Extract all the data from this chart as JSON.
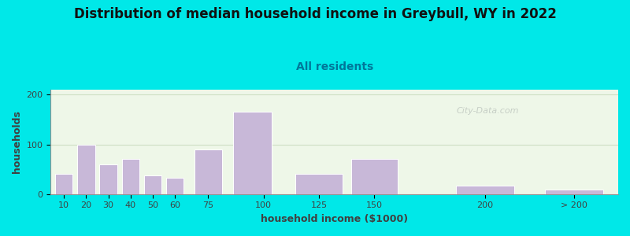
{
  "title": "Distribution of median household income in Greybull, WY in 2022",
  "subtitle": "All residents",
  "xlabel": "household income ($1000)",
  "ylabel": "households",
  "background_outer": "#00e8e8",
  "bar_color": "#c8b8d8",
  "bar_edgecolor": "#ffffff",
  "watermark": "City-Data.com",
  "x_positions": [
    10,
    20,
    30,
    40,
    50,
    60,
    75,
    95,
    125,
    150,
    200,
    240
  ],
  "bar_widths": [
    9,
    9,
    9,
    9,
    9,
    9,
    14,
    20,
    24,
    24,
    30,
    30
  ],
  "values": [
    40,
    100,
    60,
    70,
    38,
    33,
    90,
    165,
    40,
    70,
    17,
    9
  ],
  "xlim": [
    4,
    260
  ],
  "ylim": [
    0,
    210
  ],
  "yticks": [
    0,
    100,
    200
  ],
  "xtick_labels": [
    "10",
    "20",
    "30",
    "40",
    "50",
    "60",
    "75",
    "100",
    "125",
    "150",
    "200",
    "> 200"
  ],
  "xtick_positions": [
    10,
    20,
    30,
    40,
    50,
    60,
    75,
    100,
    125,
    150,
    200,
    240
  ],
  "title_fontsize": 12,
  "subtitle_fontsize": 10,
  "axis_label_fontsize": 9,
  "tick_fontsize": 8,
  "grid_color": "#b0c8a0",
  "grid_alpha": 0.5
}
